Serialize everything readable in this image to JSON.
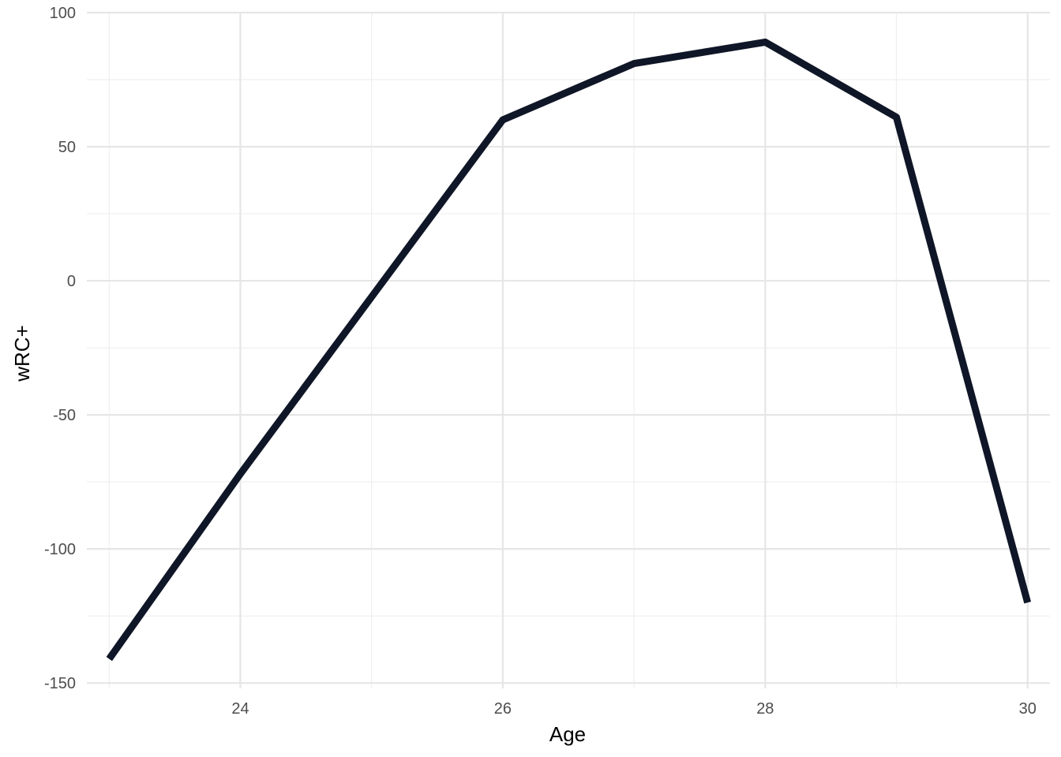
{
  "chart_data": {
    "type": "line",
    "title": "",
    "xlabel": "Age",
    "ylabel": "wRC+",
    "xlim": [
      22.83,
      30.17
    ],
    "ylim": [
      -152,
      100
    ],
    "x_ticks": [
      24,
      26,
      28,
      30
    ],
    "y_ticks": [
      -150,
      -100,
      -50,
      0,
      50,
      100
    ],
    "x_minor_ticks": [
      23,
      25,
      27,
      29
    ],
    "y_minor_ticks": [
      -125,
      -75,
      -25,
      25,
      75
    ],
    "grid": true,
    "legend": "none",
    "series": [
      {
        "color": "#0f1627",
        "x": [
          23,
          24,
          25,
          26,
          27,
          28,
          29,
          30
        ],
        "y": [
          -141,
          -72,
          -6,
          60,
          81,
          89,
          61,
          -120
        ]
      }
    ]
  }
}
